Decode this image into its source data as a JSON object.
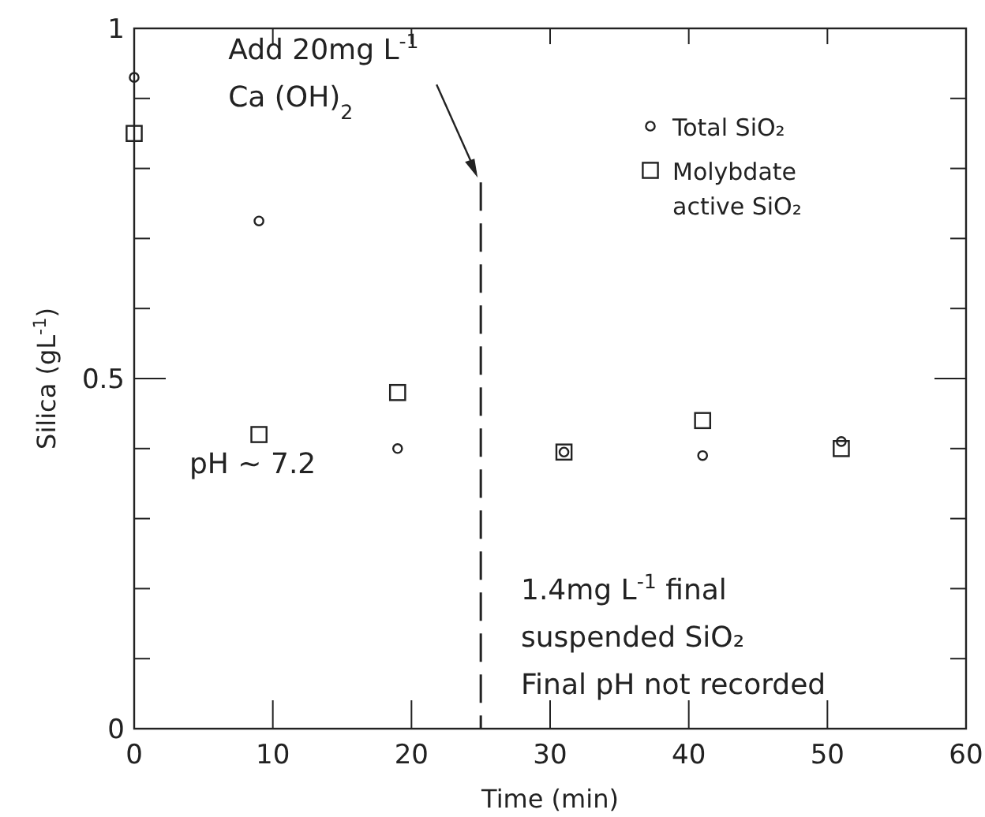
{
  "chart_data": {
    "type": "scatter",
    "xlabel": "Time (min)",
    "ylabel": "Silica (gL$^{-1}$)",
    "xlim": [
      0,
      60
    ],
    "xticks": [
      0,
      10,
      20,
      30,
      40,
      50,
      60
    ],
    "ylim": [
      0,
      1
    ],
    "yticks": [
      0,
      {
        "value": 0.1,
        "label": null
      },
      {
        "value": 0.2,
        "label": null
      },
      {
        "value": 0.3,
        "label": null
      },
      {
        "value": 0.4,
        "label": null
      },
      0.5,
      {
        "value": 0.6,
        "label": null
      },
      {
        "value": 0.7,
        "label": null
      },
      {
        "value": 0.8,
        "label": null
      },
      {
        "value": 0.9,
        "label": null
      },
      1
    ],
    "grid": false,
    "legend": "top right",
    "series": [
      {
        "name": "Total SiO₂",
        "color": "#222222",
        "marker": "circle",
        "x": [
          0,
          9,
          19,
          31,
          41,
          51
        ],
        "values": [
          0.93,
          0.725,
          0.4,
          0.395,
          0.39,
          0.41
        ]
      },
      {
        "name": "Molybdate active SiO₂",
        "color": "#222222",
        "marker": "square",
        "x": [
          0,
          9,
          19,
          31,
          41,
          51
        ],
        "values": [
          0.85,
          0.42,
          0.48,
          0.395,
          0.44,
          0.4
        ]
      }
    ],
    "ref_lines": [
      {
        "axis": "x",
        "value": 25,
        "line_style": "dashed",
        "label": "Add 20mg L$^{-1}$\nCa (OH)$_{2}$"
      }
    ],
    "annotations": [
      "pH ~ 7.2",
      "1.4mg L$^{-1}$ final\nsuspended SiO₂\nFinal pH not recorded"
    ]
  }
}
